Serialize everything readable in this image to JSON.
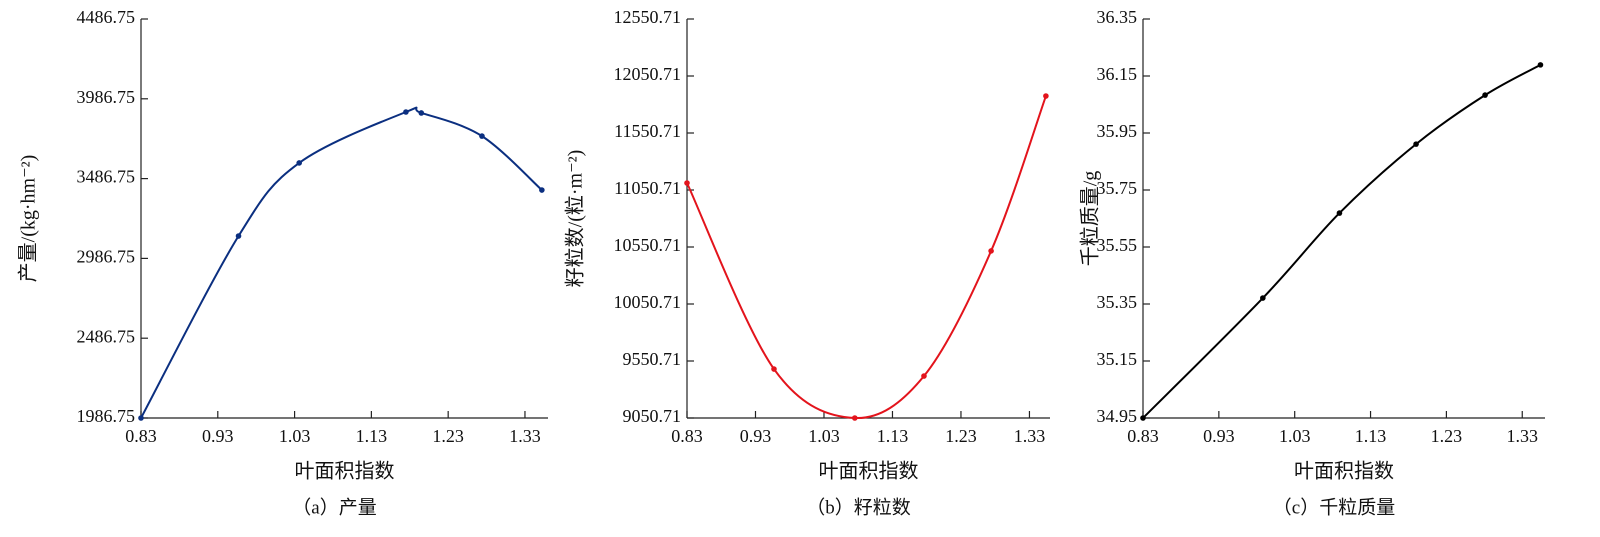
{
  "chart_data": [
    {
      "type": "line",
      "title": "（a）产量",
      "xlabel": "叶面积指数",
      "ylabel": "产量/(kg·hm⁻²)",
      "x": [
        0.83,
        0.957,
        1.036,
        1.175,
        1.195,
        1.274,
        1.352
      ],
      "series": [
        {
          "color": "#0b2f80",
          "values": [
            1986.75,
            3127,
            3585,
            3904,
            3898,
            3753,
            3415
          ]
        }
      ],
      "xlim": [
        0.83,
        1.36
      ],
      "ylim": [
        1986.75,
        4486.75
      ],
      "xticks": [
        0.83,
        0.93,
        1.03,
        1.13,
        1.23,
        1.33
      ],
      "yticks": [
        1986.75,
        2486.75,
        2986.75,
        3486.75,
        3986.75,
        4486.75
      ]
    },
    {
      "type": "line",
      "title": "（b）籽粒数",
      "xlabel": "叶面积指数",
      "ylabel": "籽粒数/(粒·m⁻²)",
      "x": [
        0.83,
        0.957,
        1.075,
        1.176,
        1.274,
        1.354
      ],
      "series": [
        {
          "color": "#e3141c",
          "values": [
            11112,
            9480,
            9050.71,
            9419,
            10516,
            11875
          ]
        }
      ],
      "xlim": [
        0.83,
        1.36
      ],
      "ylim": [
        9050.71,
        12550.71
      ],
      "xticks": [
        0.83,
        0.93,
        1.03,
        1.13,
        1.23,
        1.33
      ],
      "yticks": [
        9050.71,
        9550.71,
        10050.71,
        10550.71,
        11050.71,
        11550.71,
        12050.71,
        12550.71
      ]
    },
    {
      "type": "line",
      "title": "（c）千粒质量",
      "xlabel": "叶面积指数",
      "ylabel": "千粒质量/g",
      "x": [
        0.83,
        0.988,
        1.089,
        1.19,
        1.281,
        1.354
      ],
      "series": [
        {
          "color": "#000000",
          "values": [
            34.95,
            35.371,
            35.669,
            35.911,
            36.083,
            36.189
          ]
        }
      ],
      "xlim": [
        0.83,
        1.36
      ],
      "ylim": [
        34.95,
        36.35
      ],
      "xticks": [
        0.83,
        0.93,
        1.03,
        1.13,
        1.23,
        1.33
      ],
      "yticks": [
        34.95,
        35.15,
        35.35,
        35.55,
        35.75,
        35.95,
        36.15,
        36.35
      ]
    }
  ]
}
